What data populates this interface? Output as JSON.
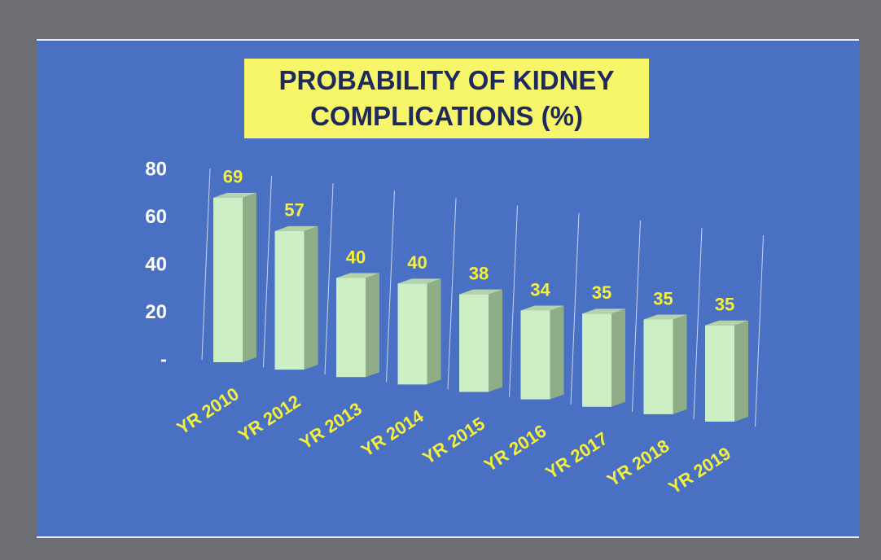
{
  "chart_data": {
    "type": "bar3d",
    "title": "PROBABILITY OF KIDNEY COMPLICATIONS (%)",
    "categories": [
      "YR 2010",
      "YR 2012",
      "YR 2013",
      "YR 2014",
      "YR 2015",
      "YR 2016",
      "YR 2017",
      "YR 2018",
      "YR 2019"
    ],
    "values": [
      69,
      57,
      40,
      40,
      38,
      34,
      35,
      35,
      35
    ],
    "color": "#ccefc6",
    "ylim": [
      0,
      80
    ],
    "yticks": [
      {
        "value": 0,
        "label": "-"
      },
      20,
      40,
      60,
      80
    ],
    "grid": false
  }
}
